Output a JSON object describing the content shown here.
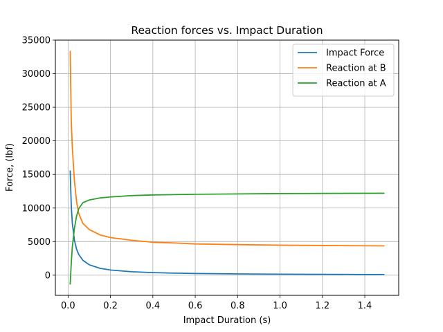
{
  "chart_data": {
    "type": "line",
    "title": "Reaction forces vs. Impact Duration",
    "xlabel": "Impact Duration (s)",
    "ylabel": "Force, (lbf)",
    "xlim": [
      -0.06,
      1.56
    ],
    "ylim": [
      -3000,
      35000
    ],
    "xticks": [
      0.0,
      0.2,
      0.4,
      0.6,
      0.8,
      1.0,
      1.2,
      1.4
    ],
    "xtick_labels": [
      "0.0",
      "0.2",
      "0.4",
      "0.6",
      "0.8",
      "1.0",
      "1.2",
      "1.4"
    ],
    "yticks": [
      0,
      5000,
      10000,
      15000,
      20000,
      25000,
      30000,
      35000
    ],
    "ytick_labels": [
      "0",
      "5000",
      "10000",
      "15000",
      "20000",
      "25000",
      "30000",
      "35000"
    ],
    "grid": true,
    "legend_position": "top-right",
    "series": [
      {
        "name": "Impact Force",
        "color": "#1f77b4",
        "x": [
          0.01,
          0.015,
          0.02,
          0.03,
          0.04,
          0.05,
          0.07,
          0.1,
          0.15,
          0.2,
          0.3,
          0.4,
          0.5,
          0.6,
          0.8,
          1.0,
          1.2,
          1.49
        ],
        "y": [
          15500,
          10300,
          7750,
          5170,
          3880,
          3100,
          2210,
          1550,
          1030,
          775,
          517,
          388,
          310,
          258,
          194,
          155,
          129,
          104
        ]
      },
      {
        "name": "Reaction at B",
        "color": "#ff7f0e",
        "x": [
          0.01,
          0.015,
          0.02,
          0.03,
          0.04,
          0.05,
          0.07,
          0.1,
          0.15,
          0.2,
          0.3,
          0.4,
          0.5,
          0.6,
          0.8,
          1.0,
          1.2,
          1.49
        ],
        "y": [
          33300,
          23000,
          19000,
          14000,
          11000,
          9200,
          7700,
          6800,
          6000,
          5600,
          5200,
          4900,
          4800,
          4650,
          4550,
          4470,
          4420,
          4360
        ]
      },
      {
        "name": "Reaction at A",
        "color": "#2ca02c",
        "x": [
          0.01,
          0.015,
          0.02,
          0.03,
          0.04,
          0.05,
          0.07,
          0.1,
          0.15,
          0.2,
          0.3,
          0.4,
          0.5,
          0.6,
          0.8,
          1.0,
          1.2,
          1.49
        ],
        "y": [
          -1300,
          1800,
          4200,
          7000,
          8800,
          9900,
          10800,
          11200,
          11500,
          11650,
          11850,
          11950,
          12000,
          12050,
          12100,
          12150,
          12180,
          12200
        ]
      }
    ]
  }
}
